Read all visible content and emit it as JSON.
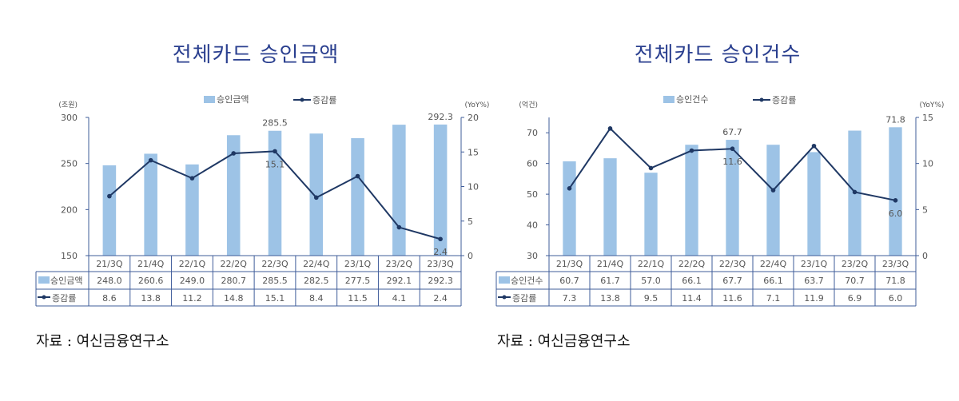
{
  "chart_data": [
    {
      "type": "bar+line",
      "title": "전체카드 승인금액",
      "left_unit": "(조원)",
      "right_unit": "(YoY%)",
      "categories": [
        "21/3Q",
        "21/4Q",
        "22/1Q",
        "22/2Q",
        "22/3Q",
        "22/4Q",
        "23/1Q",
        "23/2Q",
        "23/3Q"
      ],
      "series": [
        {
          "name": "승인금액",
          "kind": "bar",
          "axis": "left",
          "values": [
            248.0,
            260.6,
            249.0,
            280.7,
            285.5,
            282.5,
            277.5,
            292.1,
            292.3
          ]
        },
        {
          "name": "증감률",
          "kind": "line",
          "axis": "right",
          "values": [
            8.6,
            13.8,
            11.2,
            14.8,
            15.1,
            8.4,
            11.5,
            4.1,
            2.4
          ]
        }
      ],
      "left_axis": {
        "range": [
          150,
          300
        ],
        "ticks": [
          "150",
          "200",
          "250",
          "300"
        ]
      },
      "right_axis": {
        "range": [
          0,
          20
        ],
        "ticks": [
          "0",
          "5",
          "10",
          "15",
          "20"
        ]
      },
      "data_labels": {
        "bar": [
          "",
          "",
          "",
          "",
          "285.5",
          "",
          "",
          "",
          "292.3"
        ],
        "line": [
          "",
          "",
          "",
          "",
          "15.1",
          "",
          "",
          "",
          "2.4"
        ]
      },
      "legend": "top",
      "grid": false,
      "data_table": true,
      "source": "자료 : 여신금융연구소"
    },
    {
      "type": "bar+line",
      "title": "전체카드 승인건수",
      "left_unit": "(억건)",
      "right_unit": "(YoY%)",
      "categories": [
        "21/3Q",
        "21/4Q",
        "22/1Q",
        "22/2Q",
        "22/3Q",
        "22/4Q",
        "23/1Q",
        "23/2Q",
        "23/3Q"
      ],
      "series": [
        {
          "name": "승인건수",
          "kind": "bar",
          "axis": "left",
          "values": [
            60.7,
            61.7,
            57.0,
            66.1,
            67.7,
            66.1,
            63.7,
            70.7,
            71.8
          ]
        },
        {
          "name": "증감률",
          "kind": "line",
          "axis": "right",
          "values": [
            7.3,
            13.8,
            9.5,
            11.4,
            11.6,
            7.1,
            11.9,
            6.9,
            6.0
          ]
        }
      ],
      "left_axis": {
        "range": [
          30,
          75
        ],
        "ticks": [
          "30",
          "40",
          "50",
          "60",
          "70"
        ]
      },
      "right_axis": {
        "range": [
          0,
          15
        ],
        "ticks": [
          "0",
          "5",
          "10",
          "15"
        ]
      },
      "data_labels": {
        "bar": [
          "",
          "",
          "",
          "",
          "67.7",
          "",
          "",
          "",
          "71.8"
        ],
        "line": [
          "",
          "",
          "",
          "",
          "11.6",
          "",
          "",
          "",
          "6.0"
        ]
      },
      "legend": "top",
      "grid": false,
      "data_table": true,
      "source": "자료 : 여신금융연구소"
    }
  ],
  "colors": {
    "bar": "#9dc3e6",
    "line": "#1f3864",
    "title": "#2a3f8f",
    "table_border": "#3f5c9a"
  }
}
